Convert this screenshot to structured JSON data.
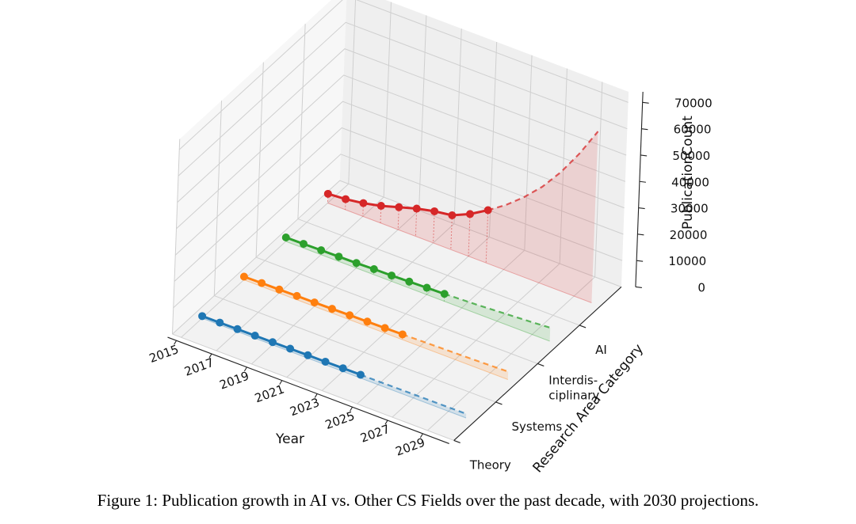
{
  "caption": "Figure 1: Publication growth in AI vs. Other CS Fields over the past decade, with 2030 projections.",
  "chart_data": {
    "type": "line",
    "projection": "3d",
    "title": "",
    "xlabel": "Year",
    "ylabel": "Research Area Category",
    "zlabel": "PublicationCount",
    "x_ticks": [
      "2015",
      "2017",
      "2019",
      "2021",
      "2023",
      "2025",
      "2027",
      "2029"
    ],
    "y_ticks": [
      "Theory",
      "Systems",
      "Interdis-\nciplinary",
      "AI"
    ],
    "z_ticks": [
      "0",
      "10000",
      "20000",
      "30000",
      "40000",
      "50000",
      "60000",
      "70000"
    ],
    "xlim": [
      2014.5,
      2030.5
    ],
    "zlim": [
      0,
      70000
    ],
    "grid": true,
    "years": [
      2015,
      2016,
      2017,
      2018,
      2019,
      2020,
      2021,
      2022,
      2023,
      2024
    ],
    "projection_years": [
      2024,
      2025,
      2026,
      2027,
      2028,
      2029,
      2030
    ],
    "series": [
      {
        "name": "Theory",
        "color": "#1f77b4",
        "values": [
          800,
          850,
          900,
          950,
          1000,
          1050,
          1100,
          1150,
          1200,
          1250
        ],
        "projection": [
          1250,
          1300,
          1350,
          1400,
          1450,
          1500,
          1550
        ]
      },
      {
        "name": "Systems",
        "color": "#ff7f0e",
        "values": [
          1200,
          1300,
          1350,
          1450,
          1500,
          1600,
          1700,
          1800,
          1900,
          2000
        ],
        "projection": [
          2000,
          2150,
          2300,
          2450,
          2600,
          2800,
          3000
        ]
      },
      {
        "name": "Interdisciplinary",
        "color": "#2ca02c",
        "values": [
          1500,
          1600,
          1700,
          1800,
          1900,
          2100,
          2200,
          2400,
          2600,
          2800
        ],
        "projection": [
          2800,
          3100,
          3400,
          3800,
          4200,
          4600,
          5100
        ]
      },
      {
        "name": "AI",
        "color": "#d62728",
        "values": [
          3500,
          4000,
          5000,
          6500,
          8500,
          10500,
          12000,
          13000,
          16000,
          20000
        ],
        "projection": [
          20000,
          24500,
          30000,
          36500,
          44500,
          54000,
          65000
        ]
      }
    ]
  }
}
